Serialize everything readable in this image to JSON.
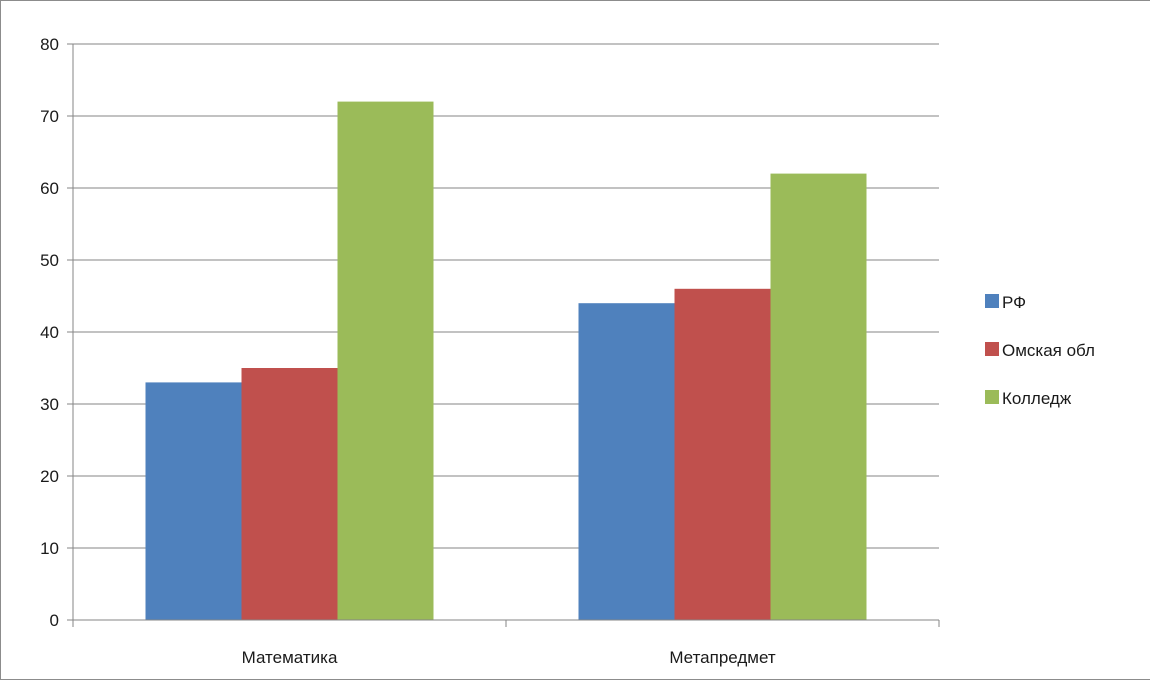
{
  "chart_data": {
    "type": "bar",
    "title": "",
    "xlabel": "",
    "ylabel": "",
    "categories": [
      "Математика",
      "Метапредмет"
    ],
    "series": [
      {
        "name": "РФ",
        "values": [
          33,
          44
        ],
        "color": "#4f81bd"
      },
      {
        "name": "Омская обл",
        "values": [
          35,
          46
        ],
        "color": "#c0504d"
      },
      {
        "name": "Колледж",
        "values": [
          72,
          62
        ],
        "color": "#9bbb59"
      }
    ],
    "ylim": [
      0,
      80
    ],
    "yticks": [
      "0",
      "10",
      "20",
      "30",
      "40",
      "50",
      "60",
      "70",
      "80"
    ],
    "grid": true,
    "legend": "right"
  }
}
